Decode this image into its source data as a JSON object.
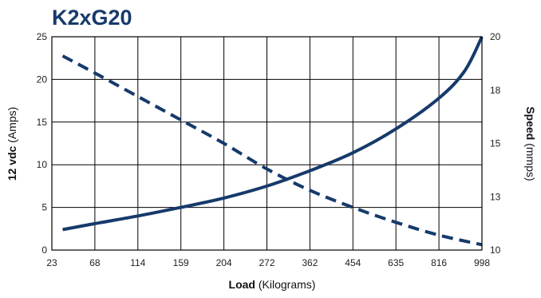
{
  "chart_data": {
    "type": "line",
    "title": "K2xG20",
    "colors": {
      "title": "#163a6b",
      "series": "#163a6b",
      "grid": "#000000",
      "frame": "#000000"
    },
    "xlabel": {
      "bold": "Load",
      "rest": " (Kilograms)"
    },
    "ylabel_left": {
      "bold": "12 vdc",
      "rest": " (Amps)"
    },
    "ylabel_right": {
      "bold": "Speed",
      "rest": " (mmps)"
    },
    "categories": [
      "23",
      "68",
      "114",
      "159",
      "204",
      "272",
      "362",
      "454",
      "635",
      "816",
      "998"
    ],
    "y_left": {
      "ticks": [
        "0",
        "5",
        "10",
        "15",
        "20",
        "25"
      ],
      "lim": [
        0,
        25
      ]
    },
    "y_right": {
      "ticks": [
        "10",
        "13",
        "15",
        "18",
        "20"
      ],
      "lim": [
        10,
        20
      ]
    },
    "grid": true,
    "legend": "none",
    "series": [
      {
        "axis": "left",
        "style": "solid",
        "points": [
          [
            0.25,
            2.4
          ],
          [
            1,
            3.1
          ],
          [
            2,
            4
          ],
          [
            3,
            5
          ],
          [
            4,
            6.1
          ],
          [
            5,
            7.5
          ],
          [
            6,
            9.3
          ],
          [
            7,
            11.4
          ],
          [
            8,
            14.2
          ],
          [
            9,
            17.8
          ],
          [
            9.6,
            21
          ],
          [
            10,
            25
          ]
        ]
      },
      {
        "axis": "right",
        "style": "dashed",
        "points": [
          [
            0.25,
            19.1
          ],
          [
            1,
            18.3
          ],
          [
            2,
            17.2
          ],
          [
            3,
            16.1
          ],
          [
            4,
            15.0
          ],
          [
            5,
            13.8
          ],
          [
            6,
            12.8
          ],
          [
            7,
            12.0
          ],
          [
            8,
            11.3
          ],
          [
            9,
            10.7
          ],
          [
            10,
            10.25
          ]
        ]
      }
    ]
  }
}
